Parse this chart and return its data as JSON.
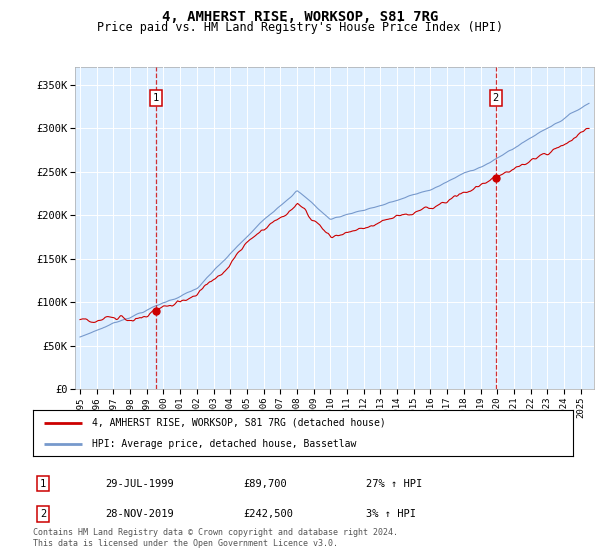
{
  "title": "4, AMHERST RISE, WORKSOP, S81 7RG",
  "subtitle": "Price paid vs. HM Land Registry's House Price Index (HPI)",
  "ylim": [
    0,
    370000
  ],
  "yticks": [
    0,
    50000,
    100000,
    150000,
    200000,
    250000,
    300000,
    350000
  ],
  "ytick_labels": [
    "£0",
    "£50K",
    "£100K",
    "£150K",
    "£200K",
    "£250K",
    "£300K",
    "£350K"
  ],
  "xtick_years": [
    1995,
    1996,
    1997,
    1998,
    1999,
    2000,
    2001,
    2002,
    2003,
    2004,
    2005,
    2006,
    2007,
    2008,
    2009,
    2010,
    2011,
    2012,
    2013,
    2014,
    2015,
    2016,
    2017,
    2018,
    2019,
    2020,
    2021,
    2022,
    2023,
    2024,
    2025
  ],
  "red_line_color": "#cc0000",
  "blue_line_color": "#7799cc",
  "plot_bg_color": "#ddeeff",
  "marker1_date_x": 1999.57,
  "marker1_value": 89700,
  "marker2_date_x": 2019.91,
  "marker2_value": 242500,
  "legend_label_red": "4, AMHERST RISE, WORKSOP, S81 7RG (detached house)",
  "legend_label_blue": "HPI: Average price, detached house, Bassetlaw",
  "table_row1": [
    "1",
    "29-JUL-1999",
    "£89,700",
    "27% ↑ HPI"
  ],
  "table_row2": [
    "2",
    "28-NOV-2019",
    "£242,500",
    "3% ↑ HPI"
  ],
  "footer": "Contains HM Land Registry data © Crown copyright and database right 2024.\nThis data is licensed under the Open Government Licence v3.0.",
  "title_fontsize": 10,
  "subtitle_fontsize": 8.5
}
